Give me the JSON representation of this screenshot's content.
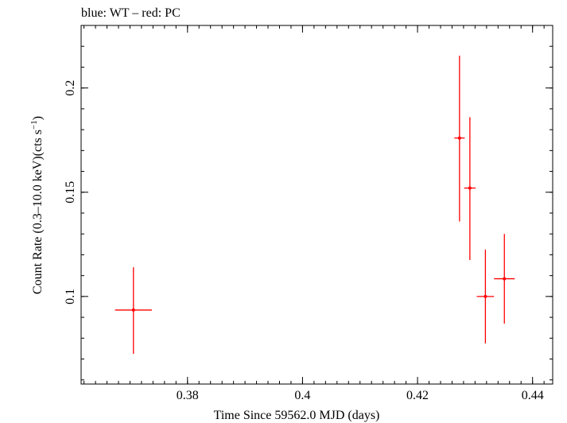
{
  "chart_data": {
    "type": "scatter",
    "title": "blue: WT – red: PC",
    "xlabel": "Time Since 59562.0 MJD (days)",
    "ylabel": "Count Rate (0.3–10.0 keV)(cts s",
    "ylabel_sup": "−1",
    "ylabel_end": ")",
    "xlim": [
      0.3615,
      0.4435
    ],
    "ylim": [
      0.058,
      0.23
    ],
    "x_ticks": [
      {
        "value": 0.38,
        "label": "0.38"
      },
      {
        "value": 0.4,
        "label": "0.4"
      },
      {
        "value": 0.42,
        "label": "0.42"
      },
      {
        "value": 0.44,
        "label": "0.44"
      }
    ],
    "y_ticks": [
      {
        "value": 0.1,
        "label": "0.1"
      },
      {
        "value": 0.15,
        "label": "0.15"
      },
      {
        "value": 0.2,
        "label": "0.2"
      }
    ],
    "x_minor_step": 0.002,
    "y_minor_step": 0.01,
    "grid": false,
    "series": [
      {
        "color": "#ff0000",
        "points": [
          {
            "x": 0.3706,
            "xerr": 0.0032,
            "y": 0.0935,
            "yerr_lo": 0.021,
            "yerr_hi": 0.0205
          },
          {
            "x": 0.4273,
            "xerr": 0.0009,
            "y": 0.176,
            "yerr_lo": 0.04,
            "yerr_hi": 0.0395
          },
          {
            "x": 0.4291,
            "xerr": 0.001,
            "y": 0.152,
            "yerr_lo": 0.0345,
            "yerr_hi": 0.034
          },
          {
            "x": 0.4318,
            "xerr": 0.0015,
            "y": 0.1,
            "yerr_lo": 0.0225,
            "yerr_hi": 0.0225
          },
          {
            "x": 0.4351,
            "xerr": 0.0018,
            "y": 0.1085,
            "yerr_lo": 0.0215,
            "yerr_hi": 0.0215
          }
        ]
      }
    ]
  }
}
